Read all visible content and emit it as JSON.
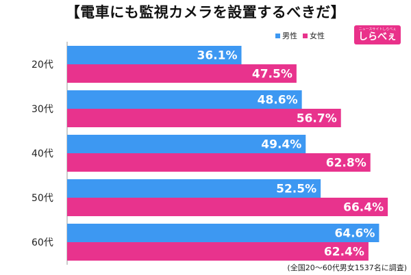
{
  "title": "【電車にも監視カメラを設置するべきだ】",
  "legend": {
    "male": "男性",
    "female": "女性"
  },
  "logo": {
    "tagline": "ニュースサイトしらべぇ",
    "name": "しらべぇ"
  },
  "footnote": "(全国20〜60代男女1537名に調査)",
  "colors": {
    "male": "#3d98f2",
    "female": "#e8338d"
  },
  "chart_data": {
    "type": "bar",
    "orientation": "horizontal",
    "title": "【電車にも監視カメラを設置するべきだ】",
    "categories": [
      "20代",
      "30代",
      "40代",
      "50代",
      "60代"
    ],
    "series": [
      {
        "name": "男性",
        "values": [
          36.1,
          48.6,
          49.4,
          52.5,
          64.6
        ]
      },
      {
        "name": "女性",
        "values": [
          47.5,
          56.7,
          62.8,
          66.4,
          62.4
        ]
      }
    ],
    "value_suffix": "%",
    "xlim": [
      0,
      70
    ]
  }
}
